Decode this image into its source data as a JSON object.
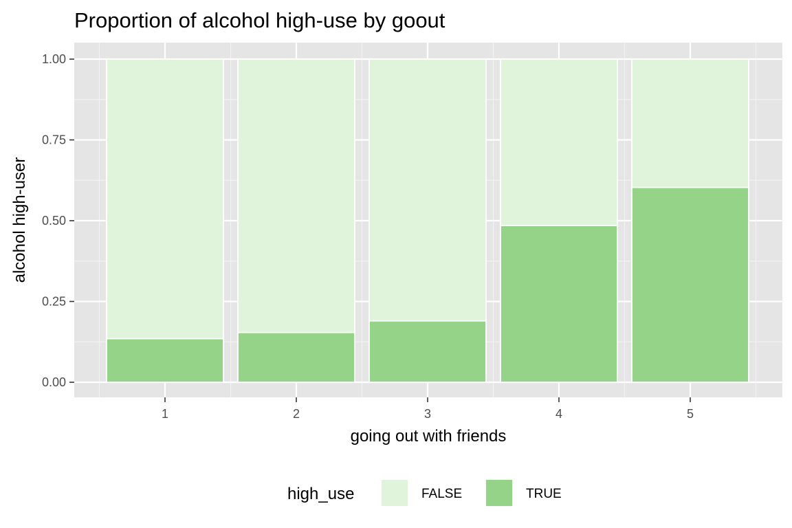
{
  "chart_data": {
    "type": "bar",
    "stacked": true,
    "normalized": true,
    "title": "Proportion of alcohol high-use by goout",
    "xlabel": "going out with friends",
    "ylabel": "alcohol high-user",
    "categories": [
      "1",
      "2",
      "3",
      "4",
      "5"
    ],
    "ylim": [
      0,
      1
    ],
    "yticks": [
      0.0,
      0.25,
      0.5,
      0.75,
      1.0
    ],
    "ytick_labels": [
      "0.00",
      "0.25",
      "0.50",
      "0.75",
      "1.00"
    ],
    "grid": true,
    "legend": {
      "title": "high_use",
      "placement": "bottom"
    },
    "series": [
      {
        "name": "FALSE",
        "color": "#e0f3db",
        "values": [
          0.865,
          0.846,
          0.81,
          0.515,
          0.397
        ]
      },
      {
        "name": "TRUE",
        "color": "#95d389",
        "values": [
          0.135,
          0.154,
          0.19,
          0.485,
          0.603
        ]
      }
    ]
  }
}
